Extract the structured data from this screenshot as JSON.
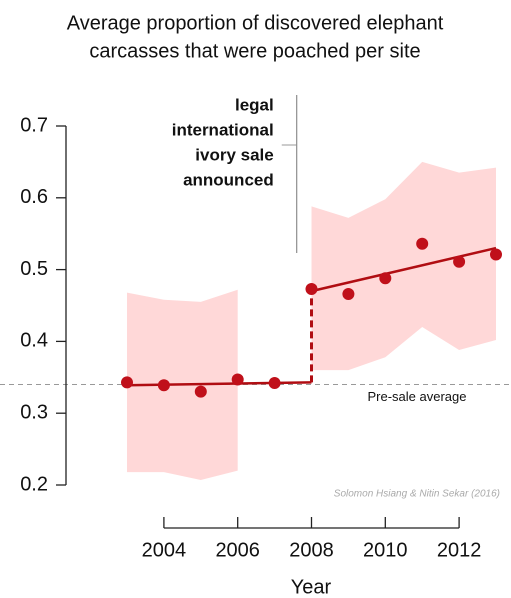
{
  "chart_data": {
    "type": "scatter",
    "title": [
      "Average proportion of discovered elephant",
      "carcasses that were poached per site"
    ],
    "x_label": "Year",
    "x": [
      2003,
      2004,
      2005,
      2006,
      2007,
      2008,
      2009,
      2010,
      2011,
      2012,
      2013
    ],
    "values": [
      0.343,
      0.339,
      0.33,
      0.347,
      0.342,
      0.473,
      0.466,
      0.488,
      0.536,
      0.511,
      0.521
    ],
    "color": "#c0101a",
    "band": {
      "lower": [
        0.218,
        0.218,
        0.207,
        0.22,
        null,
        0.36,
        0.36,
        0.378,
        0.42,
        0.388,
        0.402
      ],
      "upper": [
        0.468,
        0.458,
        0.455,
        0.472,
        null,
        0.588,
        0.572,
        0.598,
        0.65,
        0.635,
        0.642
      ],
      "color": "#ffd8d8"
    },
    "fits": [
      {
        "x": [
          2003,
          2008
        ],
        "values": [
          0.339,
          0.343
        ]
      },
      {
        "x": [
          2008,
          2013
        ],
        "values": [
          0.47,
          0.53
        ]
      }
    ],
    "fit_color": "#b00d12",
    "reference": {
      "value": 0.34,
      "label": "Pre-sale average"
    },
    "annotation": {
      "lines": [
        "legal",
        "international",
        "ivory sale",
        "announced"
      ],
      "x": 2007.6
    },
    "credit": "Solomon Hsiang & Nitin Sekar (2016)",
    "xlim": [
      2003,
      2013
    ],
    "ylim": [
      0.2,
      0.7
    ],
    "xticks": [
      2004,
      2006,
      2008,
      2010,
      2012
    ],
    "yticks": [
      0.2,
      0.3,
      0.4,
      0.5,
      0.6,
      0.7
    ]
  }
}
